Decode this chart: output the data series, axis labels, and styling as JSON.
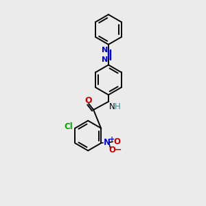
{
  "bg_color": "#ebebeb",
  "bond_color": "#000000",
  "figsize": [
    3.0,
    3.0
  ],
  "dpi": 100,
  "lw": 1.4,
  "ring_r": 22,
  "colors": {
    "N": "#0000cc",
    "O": "#cc0000",
    "Cl": "#00aa00",
    "H": "#448888",
    "C": "#000000"
  }
}
